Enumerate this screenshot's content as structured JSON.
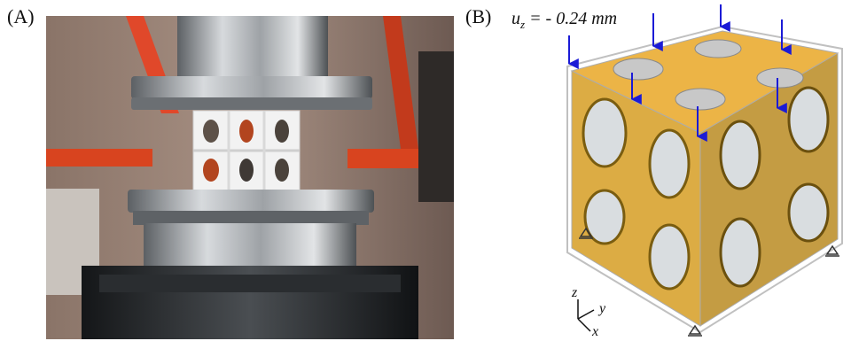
{
  "panels": {
    "a": {
      "label": "(A)"
    },
    "b": {
      "label": "(B)"
    }
  },
  "load": {
    "symbol": "u",
    "subscript": "z",
    "value_text": " = - 0.24 mm"
  },
  "axes": {
    "z": "z",
    "y": "y",
    "x": "x"
  },
  "colors": {
    "orange_frame": "#e0482a",
    "steel": "#b9bcc0",
    "specimen": "#f2f2f2",
    "lattice": "#e09a1c",
    "arrow": "#1b1bd6"
  }
}
